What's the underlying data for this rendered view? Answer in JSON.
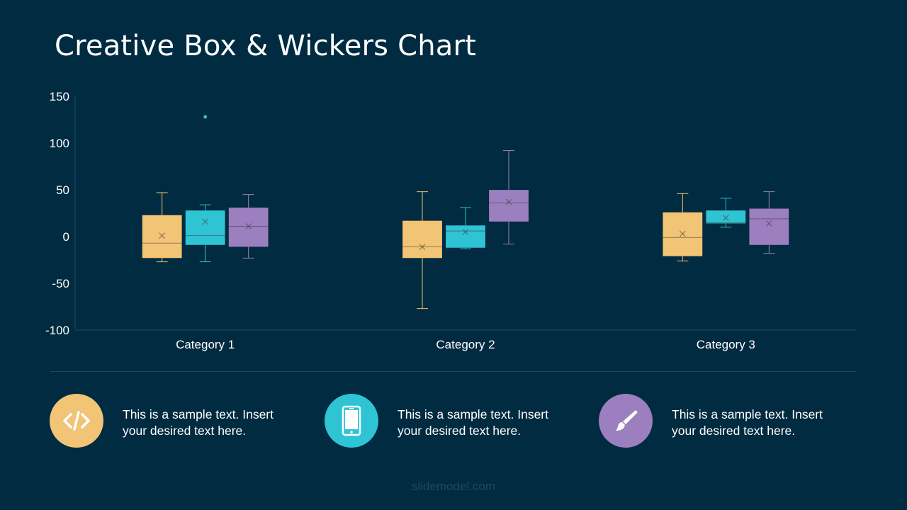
{
  "title": "Creative Box & Wickers Chart",
  "colors": {
    "background": "#002b40",
    "series1": "#f2c475",
    "series2": "#2ec4d4",
    "series3": "#9b7fbe",
    "axis": "#1e4a5e",
    "footer": "#1d4b62"
  },
  "chart_data": {
    "type": "box",
    "title": "",
    "xlabel": "",
    "ylabel": "",
    "ylim": [
      -100,
      150
    ],
    "yticks": [
      -100,
      -50,
      0,
      50,
      100,
      150
    ],
    "categories": [
      "Category 1",
      "Category 2",
      "Category 3"
    ],
    "grid": false,
    "legend": "none",
    "series": [
      {
        "color": "#f2c475",
        "boxes": [
          {
            "min": -27,
            "q1": -23,
            "median": -7,
            "q3": 23,
            "max": 47,
            "mean": 1,
            "outliers": []
          },
          {
            "min": -77,
            "q1": -23,
            "median": -11,
            "q3": 17,
            "max": 48,
            "mean": -11,
            "outliers": []
          },
          {
            "min": -26,
            "q1": -21,
            "median": -1,
            "q3": 26,
            "max": 46,
            "mean": 3,
            "outliers": []
          }
        ]
      },
      {
        "color": "#2ec4d4",
        "boxes": [
          {
            "min": -27,
            "q1": -9,
            "median": 1,
            "q3": 28,
            "max": 34,
            "mean": 16,
            "outliers": [
              128
            ]
          },
          {
            "min": -13,
            "q1": -12,
            "median": 6,
            "q3": 12,
            "max": 31,
            "mean": 5,
            "outliers": []
          },
          {
            "min": 10,
            "q1": 14,
            "median": 15,
            "q3": 28,
            "max": 41,
            "mean": 20,
            "outliers": []
          }
        ]
      },
      {
        "color": "#9b7fbe",
        "boxes": [
          {
            "min": -23,
            "q1": -11,
            "median": 11,
            "q3": 31,
            "max": 45,
            "mean": 11,
            "outliers": []
          },
          {
            "min": -8,
            "q1": 16,
            "median": 36,
            "q3": 50,
            "max": 92,
            "mean": 37,
            "outliers": []
          },
          {
            "min": -18,
            "q1": -9,
            "median": 19,
            "q3": 30,
            "max": 48,
            "mean": 14,
            "outliers": []
          }
        ]
      }
    ]
  },
  "features": [
    {
      "icon": "code-icon",
      "color": "#f2c475",
      "text": "This is a sample text. Insert your desired text here."
    },
    {
      "icon": "smartphone-icon",
      "color": "#2ec4d4",
      "text": "This is a sample text. Insert your desired text here."
    },
    {
      "icon": "paintbrush-icon",
      "color": "#9b7fbe",
      "text": "This is a sample text. Insert your desired text here."
    }
  ],
  "footer": "slidemodel.com"
}
